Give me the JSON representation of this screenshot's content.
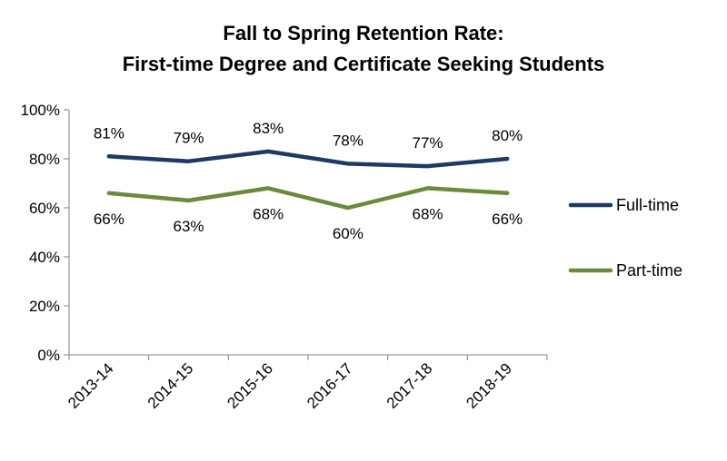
{
  "chart_data": {
    "type": "line",
    "title": "Fall to Spring Retention Rate:",
    "subtitle": "First-time Degree and Certificate Seeking Students",
    "categories": [
      "2013-14",
      "2014-15",
      "2015-16",
      "2016-17",
      "2017-18",
      "2018-19"
    ],
    "series": [
      {
        "name": "Full-time",
        "color": "#1f3864",
        "values": [
          81,
          79,
          83,
          78,
          77,
          80
        ],
        "labels": [
          "81%",
          "79%",
          "83%",
          "78%",
          "77%",
          "80%"
        ]
      },
      {
        "name": "Part-time",
        "color": "#6a8a3c",
        "values": [
          66,
          63,
          68,
          60,
          68,
          66
        ],
        "labels": [
          "66%",
          "63%",
          "68%",
          "60%",
          "68%",
          "66%"
        ]
      }
    ],
    "yaxis": {
      "ticks": [
        0,
        20,
        40,
        60,
        80,
        100
      ],
      "tick_labels": [
        "0%",
        "20%",
        "40%",
        "60%",
        "80%",
        "100%"
      ],
      "ylim": [
        0,
        100
      ]
    },
    "xlabel": "",
    "ylabel": "",
    "grid": false,
    "legend_position": "right"
  }
}
